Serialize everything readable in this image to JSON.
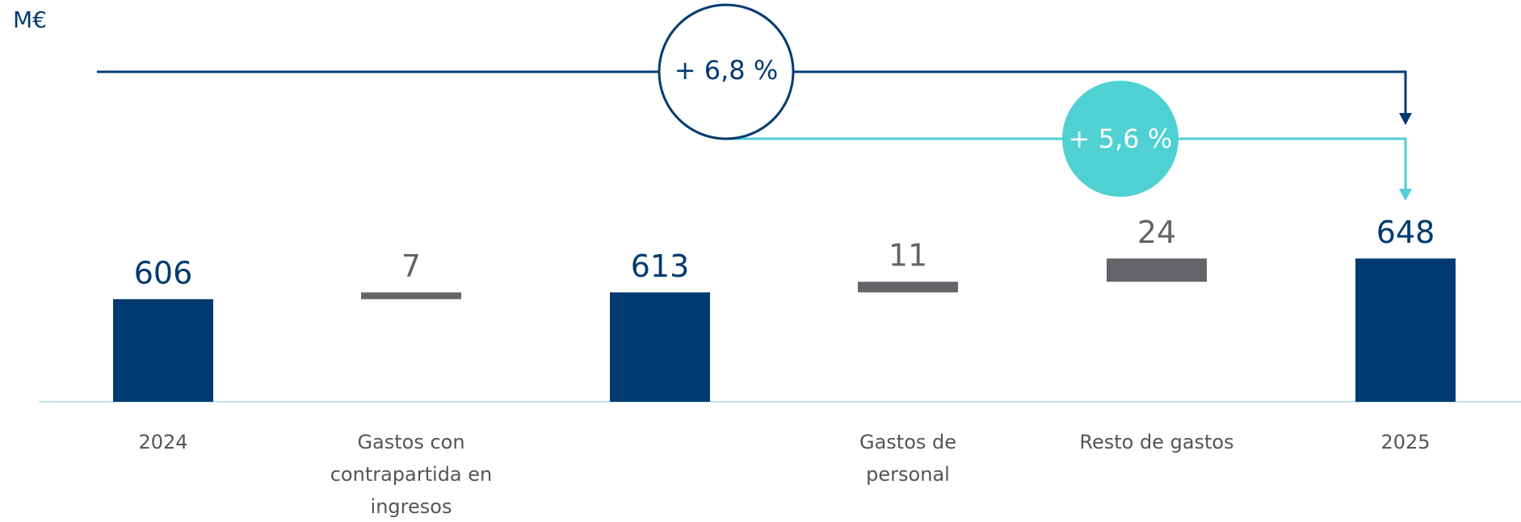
{
  "chart_data": {
    "type": "waterfall",
    "unit": "M€",
    "categories": [
      "2024",
      "Gastos con contrapartida en ingresos",
      null,
      "Gastos de personal",
      "Resto de gastos",
      "2025"
    ],
    "values": [
      606,
      7,
      613,
      11,
      24,
      648
    ],
    "bar_types": [
      "total",
      "delta",
      "total",
      "delta",
      "delta",
      "total"
    ],
    "colors": {
      "total": "#003a70",
      "delta": "#646569"
    },
    "ylim": [
      500,
      660
    ],
    "annotations": [
      {
        "text": "+ 6,8 %",
        "color": "#003a70"
      },
      {
        "text": "+ 5,6 %",
        "color": "#4fd1d3"
      }
    ]
  }
}
